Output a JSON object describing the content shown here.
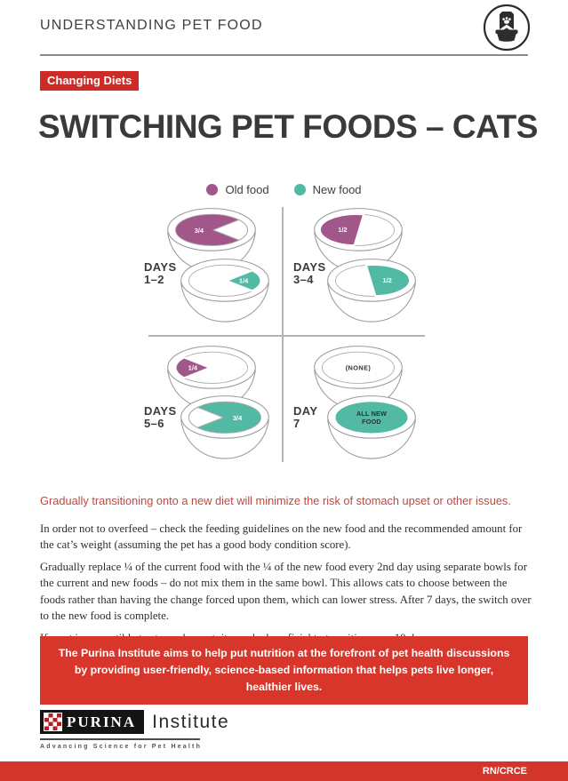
{
  "header": {
    "title": "UNDERSTANDING PET FOOD",
    "icon": "pet-food-bag-and-bowl"
  },
  "badge": "Changing Diets",
  "title": "SWITCHING PET FOODS – CATS",
  "legend": {
    "old": {
      "label": "Old food"
    },
    "new": {
      "label": "New food"
    }
  },
  "colors": {
    "old_food": "#a2578a",
    "new_food": "#52b9a4",
    "badge_red": "#cf2b26",
    "lead_red": "#c3473e",
    "banner_red": "#d8362b",
    "footer_red": "#d4352a",
    "checker_red": "#b01f24",
    "outline_gray": "#9a9a9a",
    "outline_light": "#ababab",
    "bowl_text_dark": "#1f3430"
  },
  "diagram": {
    "quadrants": [
      {
        "id": "days-1-2",
        "day_label_line1": "DAYS",
        "day_label_line2": "1–2",
        "old_bowl": {
          "variant": "34L",
          "food": "old",
          "label": "3/4"
        },
        "new_bowl": {
          "variant": "14R",
          "food": "new",
          "label": "1/4"
        }
      },
      {
        "id": "days-3-4",
        "day_label_line1": "DAYS",
        "day_label_line2": "3–4",
        "old_bowl": {
          "variant": "12L",
          "food": "old",
          "label": "1/2"
        },
        "new_bowl": {
          "variant": "12R",
          "food": "new",
          "label": "1/2"
        }
      },
      {
        "id": "days-5-6",
        "day_label_line1": "DAYS",
        "day_label_line2": "5–6",
        "old_bowl": {
          "variant": "14L",
          "food": "old",
          "label": "1/4"
        },
        "new_bowl": {
          "variant": "34R",
          "food": "new",
          "label": "3/4"
        }
      },
      {
        "id": "day-7",
        "day_label_line1": "DAY",
        "day_label_line2": "7",
        "old_bowl": {
          "variant": "empty",
          "food": null,
          "label": "(NONE)"
        },
        "new_bowl": {
          "variant": "full",
          "food": "new",
          "label": "ALL NEW FOOD",
          "label_lines": [
            "ALL NEW",
            "FOOD"
          ]
        }
      }
    ]
  },
  "lead": "Gradually transitioning onto a new diet will minimize the risk of stomach upset or other issues.",
  "paragraphs": [
    "In order not to overfeed – check the feeding guidelines on the new food and the recommended amount for the cat’s weight (assuming the pet has a good body condition score).",
    "Gradually replace ¼ of the current food with the ¼ of the new food every 2nd day using separate bowls for the current and new foods – do not mix them in the same bowl. This allows cats to choose between the foods rather than having the change forced upon them, which can lower stress. After 7 days, the switch over to the new food is complete.",
    "If a pet is susceptible to stomach upset, it may be beneficial to transition over 10 days."
  ],
  "banner": "The Purina Institute aims to help put nutrition at the forefront of pet health discussions by providing user-friendly, science-based information that helps pets live longer, healthier lives.",
  "logo": {
    "brand": "PURINA",
    "suffix": "Institute",
    "tagline": "Advancing Science for Pet Health"
  },
  "footer": {
    "code": "RN/CRCE"
  }
}
